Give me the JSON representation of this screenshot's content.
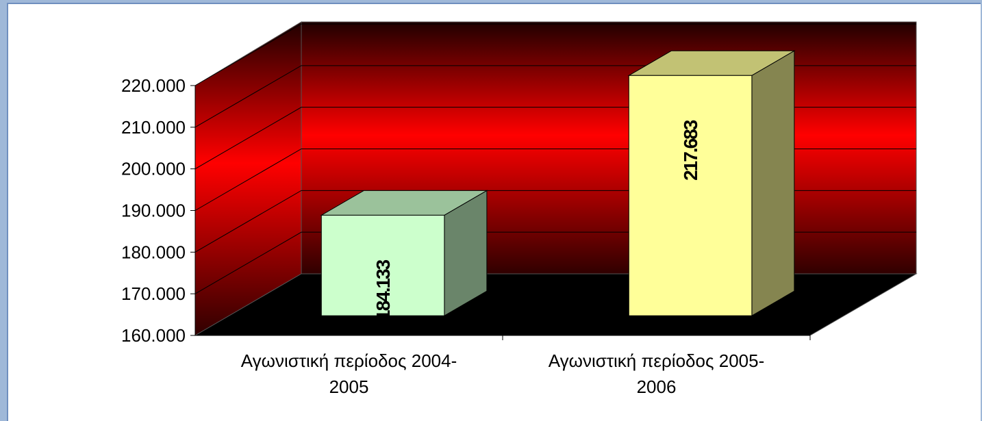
{
  "chart_data": {
    "type": "bar3d",
    "categories": [
      "Αγωνιστική περίοδος 2004-2005",
      "Αγωνιστική περίοδος 2005-2006"
    ],
    "values": [
      184133,
      217683
    ],
    "value_labels": [
      "184.133",
      "217.683"
    ],
    "colors": [
      "#ccffcc",
      "#ffff99"
    ],
    "ylim": [
      160000,
      220000
    ],
    "yticks": [
      {
        "value": 160000,
        "label": "160.000"
      },
      {
        "value": 170000,
        "label": "170.000"
      },
      {
        "value": 180000,
        "label": "180.000"
      },
      {
        "value": 190000,
        "label": "190.000"
      },
      {
        "value": 200000,
        "label": "200.000"
      },
      {
        "value": 210000,
        "label": "210.000"
      },
      {
        "value": 220000,
        "label": "220.000"
      }
    ],
    "grid": true
  }
}
